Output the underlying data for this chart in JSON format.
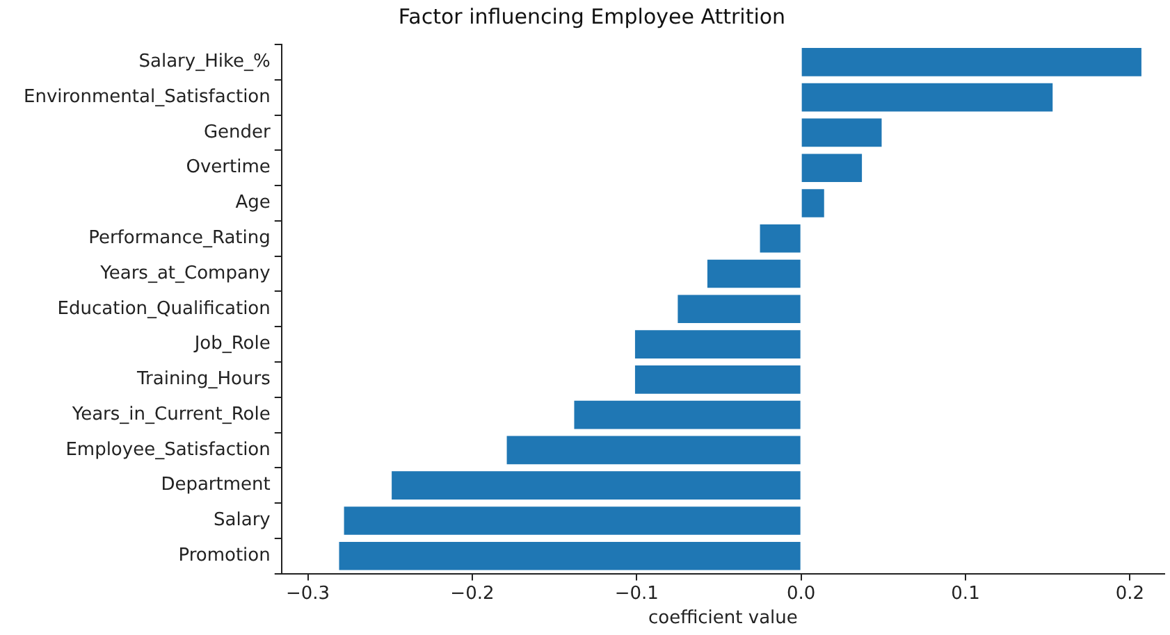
{
  "chart_data": {
    "type": "bar",
    "orientation": "horizontal",
    "title": "Factor influencing Employee Attrition",
    "xlabel": "coefficient value",
    "categories": [
      "Salary_Hike_%",
      "Environmental_Satisfaction",
      "Gender",
      "Overtime",
      "Age",
      "Performance_Rating",
      "Years_at_Company",
      "Education_Qualification",
      "Job_Role",
      "Training_Hours",
      "Years_in_Current_Role",
      "Employee_Satisfaction",
      "Department",
      "Salary",
      "Promotion"
    ],
    "values": [
      0.207,
      0.153,
      0.049,
      0.037,
      0.014,
      -0.025,
      -0.057,
      -0.075,
      -0.101,
      -0.101,
      -0.138,
      -0.179,
      -0.249,
      -0.278,
      -0.281
    ],
    "color": "#1f77b4",
    "xlim": [
      -0.316,
      0.221
    ],
    "xticks": [
      {
        "value": -0.3,
        "label": "−0.3"
      },
      {
        "value": -0.2,
        "label": "−0.2"
      },
      {
        "value": -0.1,
        "label": "−0.1"
      },
      {
        "value": 0,
        "label": "0.0"
      },
      {
        "value": 0.1,
        "label": "0.1"
      },
      {
        "value": 0.2,
        "label": "0.2"
      }
    ],
    "grid": false,
    "legend": false
  }
}
